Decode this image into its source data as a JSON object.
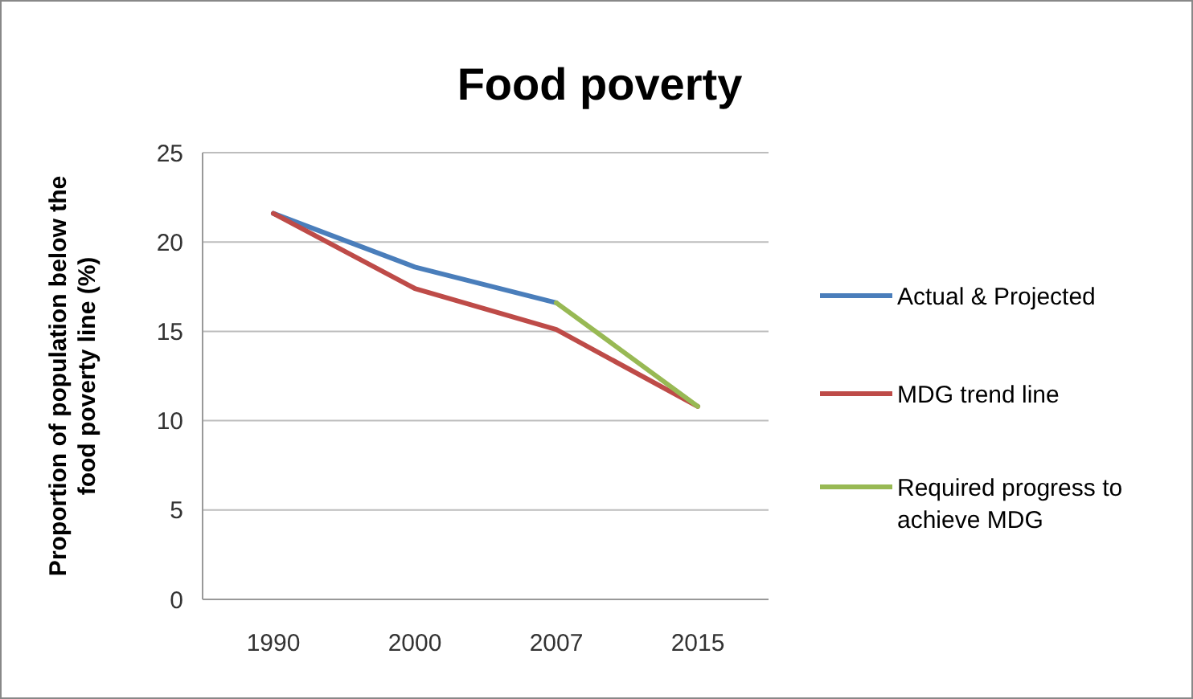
{
  "chart_data": {
    "type": "line",
    "title": "Food poverty",
    "ylabel": "Proportion of population below the food poverty line (%)",
    "categories": [
      "1990",
      "2000",
      "2007",
      "2015"
    ],
    "series": [
      {
        "name": "Actual & Projected",
        "color": "#4a7ebb",
        "values": [
          21.6,
          18.6,
          16.6,
          null
        ]
      },
      {
        "name": "MDG trend  line",
        "color": "#be4b48",
        "values": [
          21.6,
          17.4,
          15.1,
          10.8
        ]
      },
      {
        "name": "Required progress to achieve MDG",
        "color": "#98b954",
        "values": [
          null,
          null,
          16.6,
          10.8
        ]
      }
    ],
    "ylim": [
      0,
      25
    ],
    "yticks": [
      0,
      5,
      10,
      15,
      20,
      25
    ],
    "grid": "y",
    "legend": "right",
    "marker": "none",
    "line_style": "solid"
  }
}
